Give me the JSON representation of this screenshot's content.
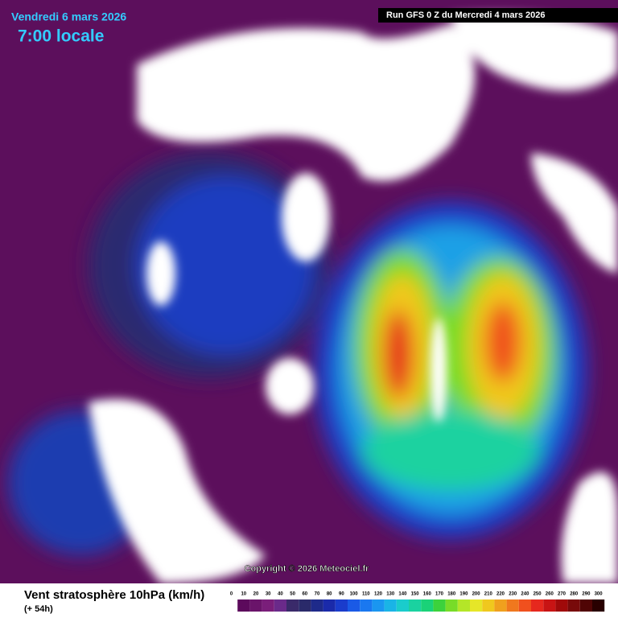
{
  "header": {
    "date": "Vendredi 6 mars 2026",
    "time": "7:00 locale",
    "run": "Run GFS 0 Z du Mercredi 4 mars 2026"
  },
  "copyright": "Copyright © 2026 Meteociel.fr",
  "legend": {
    "title": "Vent stratosphère 10hPa (km/h)",
    "subtitle": "(+ 54h)",
    "ticks": [
      0,
      10,
      20,
      30,
      40,
      50,
      60,
      70,
      80,
      90,
      100,
      110,
      120,
      130,
      140,
      150,
      160,
      170,
      180,
      190,
      200,
      210,
      220,
      230,
      240,
      250,
      260,
      270,
      280,
      290,
      300
    ],
    "colors": [
      "#ffffff",
      "#5c0a5c",
      "#6a146a",
      "#7a1e7a",
      "#6a2a8a",
      "#3a2a6a",
      "#2a2a6a",
      "#1e2a8a",
      "#1a2aaa",
      "#1a3ccc",
      "#1a5ae6",
      "#1a78f0",
      "#1a96f0",
      "#1ab4e6",
      "#1acccc",
      "#1ad2a0",
      "#1ad278",
      "#3cd23c",
      "#78dc28",
      "#b4e628",
      "#e6e628",
      "#f0c81e",
      "#f0a01e",
      "#f0781e",
      "#f0501e",
      "#e6281e",
      "#c81414",
      "#a00a0a",
      "#780a0a",
      "#500505",
      "#280000"
    ]
  }
}
